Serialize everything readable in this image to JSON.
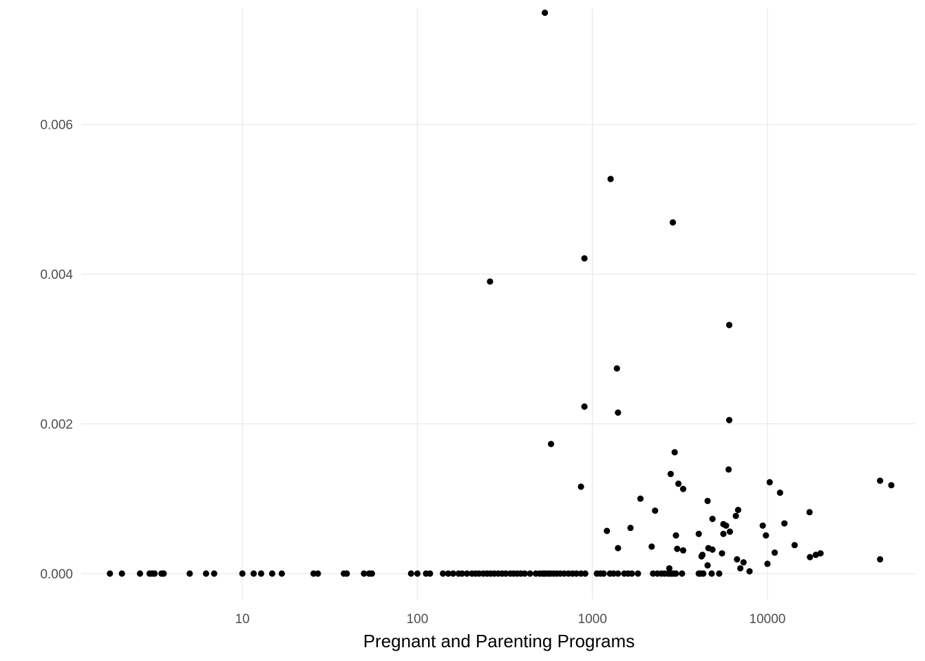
{
  "chart_data": {
    "type": "scatter",
    "title": "",
    "xlabel": "Pregnant and Parenting Programs",
    "ylabel": "",
    "x_scale": "log10",
    "xlim": [
      1.2,
      70000
    ],
    "ylim": [
      -0.00034,
      0.00755
    ],
    "x_ticks": [
      {
        "value": 10,
        "label": "10"
      },
      {
        "value": 100,
        "label": "100"
      },
      {
        "value": 1000,
        "label": "1000"
      },
      {
        "value": 10000,
        "label": "10000"
      }
    ],
    "y_ticks": [
      {
        "value": 0,
        "label": "0.000"
      },
      {
        "value": 0.002,
        "label": "0.002"
      },
      {
        "value": 0.004,
        "label": "0.004"
      },
      {
        "value": 0.006,
        "label": "0.006"
      }
    ],
    "grid": true,
    "point_color": "#000000",
    "grid_color": "#ebebeb",
    "points": [
      [
        1.75,
        0
      ],
      [
        2.05,
        0
      ],
      [
        2.6,
        0
      ],
      [
        2.95,
        0
      ],
      [
        3.05,
        0
      ],
      [
        3.15,
        0
      ],
      [
        3.45,
        0
      ],
      [
        3.55,
        0
      ],
      [
        5.0,
        0
      ],
      [
        6.2,
        0
      ],
      [
        6.9,
        0
      ],
      [
        10,
        0
      ],
      [
        11.6,
        0
      ],
      [
        12.8,
        0
      ],
      [
        14.8,
        0
      ],
      [
        16.8,
        0
      ],
      [
        25.5,
        0
      ],
      [
        27,
        0
      ],
      [
        38,
        0
      ],
      [
        39.5,
        0
      ],
      [
        49.5,
        0
      ],
      [
        53,
        0
      ],
      [
        55,
        0
      ],
      [
        92,
        0
      ],
      [
        100,
        0
      ],
      [
        112,
        0
      ],
      [
        118,
        0
      ],
      [
        140,
        0
      ],
      [
        150,
        0
      ],
      [
        160,
        0
      ],
      [
        172,
        0
      ],
      [
        180,
        0
      ],
      [
        192,
        0
      ],
      [
        205,
        0
      ],
      [
        215,
        0
      ],
      [
        225,
        0
      ],
      [
        238,
        0
      ],
      [
        250,
        0
      ],
      [
        262,
        0
      ],
      [
        275,
        0
      ],
      [
        290,
        0
      ],
      [
        305,
        0
      ],
      [
        320,
        0
      ],
      [
        340,
        0
      ],
      [
        355,
        0
      ],
      [
        372,
        0
      ],
      [
        390,
        0
      ],
      [
        410,
        0
      ],
      [
        440,
        0
      ],
      [
        475,
        0
      ],
      [
        500,
        0
      ],
      [
        520,
        0
      ],
      [
        535,
        0
      ],
      [
        555,
        0
      ],
      [
        575,
        0
      ],
      [
        600,
        0
      ],
      [
        625,
        0
      ],
      [
        655,
        0
      ],
      [
        690,
        0
      ],
      [
        730,
        0
      ],
      [
        770,
        0
      ],
      [
        810,
        0
      ],
      [
        860,
        0
      ],
      [
        910,
        0
      ],
      [
        1060,
        0
      ],
      [
        1110,
        0
      ],
      [
        1160,
        0
      ],
      [
        1260,
        0
      ],
      [
        1320,
        0
      ],
      [
        1400,
        0
      ],
      [
        1520,
        0
      ],
      [
        1600,
        0
      ],
      [
        1680,
        0
      ],
      [
        1820,
        0
      ],
      [
        2220,
        0
      ],
      [
        2350,
        0
      ],
      [
        2480,
        0
      ],
      [
        2580,
        0
      ],
      [
        2700,
        0
      ],
      [
        2780,
        0
      ],
      [
        2820,
        0
      ],
      [
        2900,
        0
      ],
      [
        3000,
        0
      ],
      [
        3250,
        0
      ],
      [
        4050,
        0
      ],
      [
        4150,
        0
      ],
      [
        4300,
        0
      ],
      [
        4800,
        0
      ],
      [
        5300,
        0
      ],
      [
        535,
        0.00749
      ],
      [
        1270,
        0.00527
      ],
      [
        2880,
        0.00469
      ],
      [
        900,
        0.00421
      ],
      [
        260,
        0.0039
      ],
      [
        6050,
        0.00332
      ],
      [
        1380,
        0.00274
      ],
      [
        900,
        0.00223
      ],
      [
        1400,
        0.00215
      ],
      [
        6050,
        0.00205
      ],
      [
        580,
        0.00173
      ],
      [
        2950,
        0.00162
      ],
      [
        6000,
        0.00139
      ],
      [
        2800,
        0.00133
      ],
      [
        44000,
        0.00124
      ],
      [
        10300,
        0.00122
      ],
      [
        3100,
        0.0012
      ],
      [
        51000,
        0.00118
      ],
      [
        860,
        0.00116
      ],
      [
        3300,
        0.00113
      ],
      [
        11800,
        0.00108
      ],
      [
        1880,
        0.001
      ],
      [
        4550,
        0.00097
      ],
      [
        6800,
        0.00085
      ],
      [
        2280,
        0.00084
      ],
      [
        17400,
        0.00082
      ],
      [
        6600,
        0.00077
      ],
      [
        4850,
        0.00073
      ],
      [
        12500,
        0.00067
      ],
      [
        5600,
        0.00066
      ],
      [
        5800,
        0.00064
      ],
      [
        9400,
        0.00064
      ],
      [
        1650,
        0.00061
      ],
      [
        1210,
        0.00057
      ],
      [
        6100,
        0.00056
      ],
      [
        4050,
        0.00053
      ],
      [
        5600,
        0.00053
      ],
      [
        9800,
        0.00051
      ],
      [
        3000,
        0.00051
      ],
      [
        14300,
        0.00038
      ],
      [
        2180,
        0.00036
      ],
      [
        4600,
        0.00034
      ],
      [
        1400,
        0.00034
      ],
      [
        3050,
        0.00033
      ],
      [
        4850,
        0.00032
      ],
      [
        3300,
        0.00031
      ],
      [
        11000,
        0.00028
      ],
      [
        20100,
        0.00027
      ],
      [
        5500,
        0.00027
      ],
      [
        4250,
        0.00025
      ],
      [
        18900,
        0.00025
      ],
      [
        4200,
        0.00023
      ],
      [
        17500,
        0.00022
      ],
      [
        6700,
        0.00019
      ],
      [
        44000,
        0.00019
      ],
      [
        7300,
        0.00015
      ],
      [
        10000,
        0.00013
      ],
      [
        4550,
        0.00011
      ],
      [
        2750,
        7e-05
      ],
      [
        7000,
        7e-05
      ],
      [
        7900,
        3e-05
      ]
    ]
  }
}
